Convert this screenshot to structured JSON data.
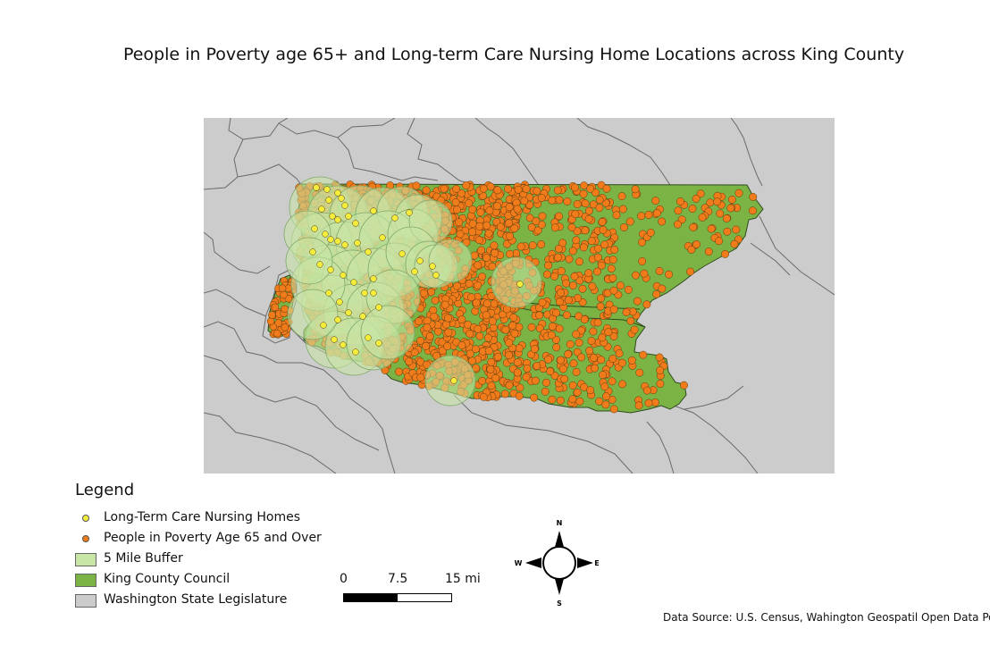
{
  "title": "People in Poverty age 65+ and Long-term Care Nursing Home Locations across King County",
  "colors": {
    "background_legislature": "#cccccc",
    "boundary_lines": "#6a6a6a",
    "king_county_council": "#7bb345",
    "king_county_border": "#2f4a1e",
    "buffer_fill": "#c8e6a6",
    "buffer_stroke": "#7fa86a",
    "nursing_home": "#f4ee3a",
    "poverty_point": "#f07b1a",
    "point_outline": "#5a3a10"
  },
  "legend": {
    "title": "Legend",
    "items": [
      {
        "label": "Long-Term Care Nursing Homes",
        "symbol": "point",
        "color": "#f4ee3a"
      },
      {
        "label": "People in Poverty Age 65 and Over",
        "symbol": "point",
        "color": "#f07b1a"
      },
      {
        "label": "5 Mile Buffer",
        "symbol": "polygon",
        "color": "#c8e6a6"
      },
      {
        "label": "King County Council",
        "symbol": "polygon",
        "color": "#7bb345"
      },
      {
        "label": "Washington State Legislature",
        "symbol": "polygon",
        "color": "#cccccc"
      }
    ]
  },
  "scale_bar": {
    "labels": [
      "0",
      "7.5",
      "15 mi"
    ]
  },
  "north_arrow": {
    "n": "N",
    "s": "S",
    "e": "E",
    "w": "W"
  },
  "data_source": "Data Source: U.S. Census, Wahington Geospatil Open Data Portal"
}
